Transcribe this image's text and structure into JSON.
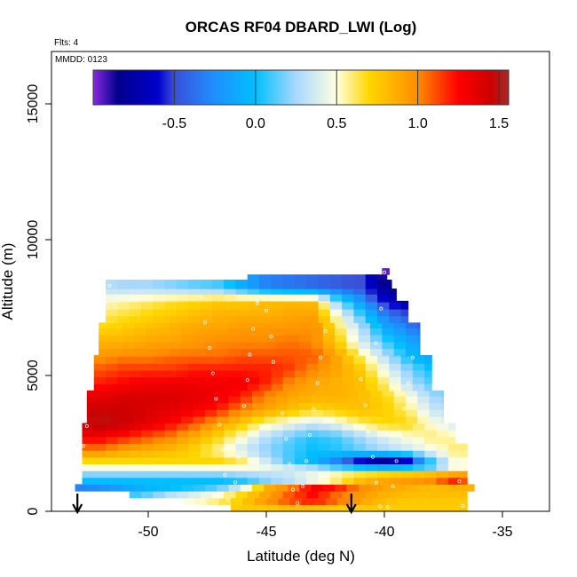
{
  "chart_data": {
    "type": "heatmap",
    "title": "ORCAS RF04 DBARD_LWI (Log)",
    "flights_label": "Flts: 4",
    "date_label": "MMDD: 0123",
    "xlabel": "Latitude (deg N)",
    "ylabel": "Altitude (m)",
    "xlim": [
      -54.1,
      -33.0
    ],
    "ylim": [
      0,
      16930
    ],
    "x_ticks": [
      -50,
      -45,
      -40,
      -35
    ],
    "x_tick_labels": [
      "-50",
      "-45",
      "-40",
      "-35"
    ],
    "y_ticks": [
      0,
      5000,
      10000,
      15000
    ],
    "y_tick_labels": [
      "0",
      "5000",
      "10000",
      "15000"
    ],
    "colorbar": {
      "range": [
        -1.0,
        1.56
      ],
      "ticks": [
        -0.5,
        0.0,
        0.5,
        1.0,
        1.5
      ],
      "tick_labels": [
        "-0.5",
        "0.0",
        "0.5",
        "1.0",
        "1.5"
      ],
      "placement": "top-inside",
      "colormap": [
        [
          -1.0,
          "#8a2be2"
        ],
        [
          -0.85,
          "#00008b"
        ],
        [
          -0.6,
          "#0000cd"
        ],
        [
          -0.5,
          "#3a4fd8"
        ],
        [
          -0.25,
          "#1e90ff"
        ],
        [
          0.0,
          "#00bfff"
        ],
        [
          0.25,
          "#a8d8ff"
        ],
        [
          0.5,
          "#ffffe0"
        ],
        [
          0.7,
          "#ffd700"
        ],
        [
          1.0,
          "#ff8c00"
        ],
        [
          1.25,
          "#ff0000"
        ],
        [
          1.45,
          "#cd0000"
        ],
        [
          1.56,
          "#a52a2a"
        ]
      ]
    },
    "grid_lat": [
      -53,
      -52,
      -51,
      -50,
      -49,
      -48,
      -47,
      -46,
      -45,
      -44,
      -43,
      -42,
      -41,
      -40,
      -39,
      -38,
      -37,
      -36
    ],
    "grid_alt": [
      125,
      375,
      625,
      875,
      1125,
      1375,
      1625,
      1875,
      2250,
      2750,
      3250,
      3750,
      4250,
      4750,
      5250,
      5750,
      6250,
      6750,
      7250,
      7750,
      8250,
      8750
    ],
    "grid_values": [
      [
        0.75,
        0.75,
        0.75,
        0.75,
        0.75,
        0.75,
        0.75,
        0.75,
        0.75,
        0.8,
        0.8,
        0.75,
        0.75,
        0.75,
        0.75,
        0.75,
        0.75,
        0.75
      ],
      [
        0.45,
        0.45,
        0.45,
        0.45,
        0.45,
        0.5,
        0.6,
        0.75,
        0.95,
        1.1,
        1.2,
        1.05,
        0.9,
        0.8,
        0.75,
        0.75,
        0.75,
        0.75
      ],
      [
        0.05,
        0.05,
        0.05,
        0.15,
        0.3,
        0.4,
        0.5,
        0.7,
        0.9,
        1.1,
        1.25,
        1.05,
        0.95,
        0.85,
        0.8,
        0.8,
        0.8,
        0.8
      ],
      [
        -0.3,
        -0.25,
        -0.15,
        -0.05,
        0.0,
        0.05,
        0.15,
        0.4,
        0.85,
        1.0,
        1.3,
        1.2,
        1.0,
        0.9,
        0.85,
        0.8,
        0.85,
        0.85
      ],
      [
        0.0,
        0.0,
        0.0,
        0.0,
        0.0,
        0.0,
        0.0,
        0.05,
        0.2,
        0.3,
        0.45,
        0.6,
        0.8,
        0.9,
        0.95,
        1.0,
        1.2,
        0.95
      ],
      [
        0.2,
        0.2,
        0.2,
        0.2,
        0.2,
        0.2,
        0.2,
        0.25,
        0.3,
        0.35,
        0.45,
        0.55,
        0.65,
        0.7,
        0.75,
        0.8,
        0.9,
        0.95
      ],
      [
        0.5,
        0.5,
        0.5,
        0.5,
        0.5,
        0.5,
        0.5,
        0.5,
        0.45,
        0.35,
        0.25,
        0.1,
        0.0,
        -0.1,
        0.0,
        0.15,
        0.5,
        0.5
      ],
      [
        0.7,
        0.7,
        0.7,
        0.7,
        0.7,
        0.7,
        0.7,
        0.6,
        0.35,
        0.1,
        -0.05,
        -0.3,
        -0.6,
        -0.8,
        -0.6,
        0.1,
        0.5,
        0.5
      ],
      [
        1.0,
        1.0,
        0.9,
        0.85,
        0.8,
        0.7,
        0.55,
        0.35,
        0.2,
        0.1,
        0.0,
        0.05,
        0.15,
        0.25,
        0.35,
        0.45,
        0.6,
        0.6
      ],
      [
        1.3,
        1.3,
        1.2,
        1.1,
        1.0,
        0.85,
        0.7,
        0.5,
        0.3,
        0.15,
        0.05,
        0.1,
        0.25,
        0.4,
        0.5,
        0.6,
        0.55,
        0.55
      ],
      [
        1.45,
        1.5,
        1.45,
        1.35,
        1.25,
        1.1,
        0.9,
        0.75,
        0.55,
        0.45,
        0.35,
        0.45,
        0.6,
        0.7,
        0.7,
        0.5,
        0.35,
        0.35
      ],
      [
        1.45,
        1.45,
        1.45,
        1.4,
        1.35,
        1.3,
        1.2,
        1.0,
        0.9,
        0.8,
        0.7,
        0.75,
        0.8,
        0.75,
        0.6,
        0.35,
        0.25,
        0.25
      ],
      [
        1.35,
        1.35,
        1.4,
        1.4,
        1.4,
        1.35,
        1.3,
        1.2,
        1.0,
        0.9,
        0.85,
        0.85,
        0.8,
        0.7,
        0.5,
        0.25,
        0.15,
        0.15
      ],
      [
        1.2,
        1.2,
        1.25,
        1.3,
        1.3,
        1.3,
        1.3,
        1.3,
        1.2,
        1.0,
        0.9,
        0.85,
        0.8,
        0.6,
        0.3,
        0.1,
        0.1,
        0.1
      ],
      [
        1.1,
        1.1,
        1.15,
        1.15,
        1.15,
        1.2,
        1.2,
        1.2,
        1.2,
        1.15,
        1.0,
        0.9,
        0.75,
        0.45,
        0.2,
        0.0,
        0.0,
        0.0
      ],
      [
        0.95,
        0.95,
        1.0,
        1.0,
        1.05,
        1.05,
        1.05,
        1.1,
        1.1,
        1.1,
        1.1,
        0.9,
        0.6,
        0.3,
        0.0,
        -0.2,
        -0.2,
        -0.2
      ],
      [
        0.85,
        0.85,
        0.85,
        0.9,
        0.9,
        0.95,
        1.0,
        1.0,
        1.0,
        1.05,
        1.0,
        0.75,
        0.4,
        0.1,
        -0.1,
        -0.3,
        -0.3,
        -0.3
      ],
      [
        0.7,
        0.7,
        0.75,
        0.8,
        0.85,
        0.9,
        0.9,
        0.95,
        0.95,
        0.95,
        1.0,
        0.65,
        0.3,
        -0.1,
        -0.3,
        -0.5,
        -0.5,
        -0.5
      ],
      [
        0.6,
        0.6,
        0.65,
        0.7,
        0.75,
        0.8,
        0.85,
        0.85,
        0.85,
        0.9,
        0.9,
        0.5,
        0.1,
        -0.3,
        -0.5,
        -0.7,
        -0.7,
        -0.7
      ],
      [
        0.5,
        0.5,
        0.55,
        0.6,
        0.65,
        0.7,
        0.75,
        0.75,
        0.8,
        0.8,
        0.8,
        0.2,
        -0.2,
        -0.6,
        -0.8,
        -0.8,
        -0.8,
        -0.8
      ],
      [
        0.3,
        0.3,
        0.25,
        0.25,
        0.2,
        0.15,
        0.1,
        -0.1,
        -0.3,
        -0.35,
        -0.4,
        -0.45,
        -0.5,
        -0.8,
        -0.85,
        -0.85,
        -0.85,
        -0.85
      ],
      [
        0.3,
        0.3,
        0.25,
        0.25,
        0.2,
        0.15,
        0.1,
        -0.1,
        -0.3,
        -0.35,
        -0.4,
        -0.45,
        -0.5,
        -0.95,
        -0.95,
        -0.95,
        -0.95,
        -0.95
      ]
    ],
    "coverage": [
      [
        0,
        250,
        -46.5,
        -36.5
      ],
      [
        250,
        500,
        -48.5,
        -36.5
      ],
      [
        500,
        750,
        -50.8,
        -36.5
      ],
      [
        750,
        1000,
        -53.1,
        -36.2
      ],
      [
        1000,
        2500,
        -52.8,
        -36.5
      ],
      [
        2500,
        3250,
        -52.8,
        -37.0
      ],
      [
        3250,
        4450,
        -52.6,
        -37.5
      ],
      [
        4450,
        5750,
        -52.3,
        -38.0
      ],
      [
        5750,
        6950,
        -52.1,
        -38.5
      ],
      [
        6950,
        7750,
        -51.8,
        -39.0
      ],
      [
        7750,
        8200,
        -51.8,
        -39.5
      ],
      [
        8200,
        8530,
        -51.8,
        -39.7
      ],
      [
        8530,
        8720,
        -45.8,
        -39.9
      ],
      [
        8720,
        8950,
        -40.1,
        -39.8
      ]
    ],
    "flight_points": [
      [
        -51.64,
        8300
      ],
      [
        -47.76,
        7880
      ],
      [
        -45.38,
        7660
      ],
      [
        -45.0,
        7390
      ],
      [
        -47.6,
        6950
      ],
      [
        -45.56,
        6710
      ],
      [
        -42.5,
        6640
      ],
      [
        -44.8,
        6440
      ],
      [
        -47.4,
        6010
      ],
      [
        -45.7,
        5770
      ],
      [
        -42.7,
        5660
      ],
      [
        -44.7,
        5500
      ],
      [
        -40.14,
        7460
      ],
      [
        -40.36,
        6190
      ],
      [
        -38.8,
        5660
      ],
      [
        -47.26,
        5080
      ],
      [
        -45.8,
        4830
      ],
      [
        -42.83,
        4720
      ],
      [
        -40.99,
        4860
      ],
      [
        -38.98,
        4720
      ],
      [
        -47.13,
        4140
      ],
      [
        -45.94,
        3880
      ],
      [
        -40.8,
        3900
      ],
      [
        -39.17,
        3770
      ],
      [
        -43.0,
        3770
      ],
      [
        -44.31,
        3610
      ],
      [
        -52.6,
        3140
      ],
      [
        -46.98,
        3190
      ],
      [
        -43.16,
        2810
      ],
      [
        -44.16,
        2660
      ],
      [
        -40.68,
        2950
      ],
      [
        -39.32,
        2810
      ],
      [
        -52.74,
        2410
      ],
      [
        -46.87,
        2270
      ],
      [
        -46.19,
        2000
      ],
      [
        -43.3,
        1850
      ],
      [
        -40.49,
        2000
      ],
      [
        -39.49,
        1850
      ],
      [
        -44.02,
        1740
      ],
      [
        -46.76,
        1340
      ],
      [
        -46.32,
        1070
      ],
      [
        -40.34,
        1050
      ],
      [
        -39.64,
        920
      ],
      [
        -36.83,
        1100
      ],
      [
        -43.46,
        920
      ],
      [
        -43.87,
        800
      ],
      [
        -43.68,
        300
      ],
      [
        -40.18,
        180
      ],
      [
        -39.86,
        150
      ],
      [
        -36.67,
        200
      ],
      [
        -46.63,
        410
      ],
      [
        -40.0,
        8800
      ]
    ],
    "arrow_lats": [
      -53.0,
      -41.4
    ]
  }
}
